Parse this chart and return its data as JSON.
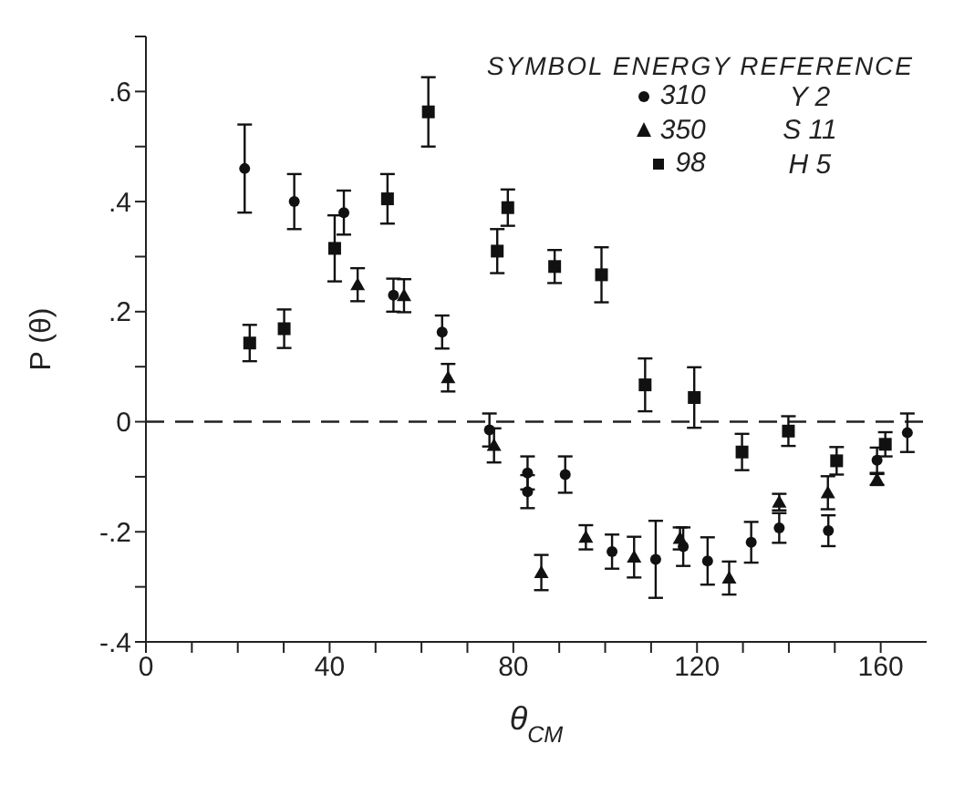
{
  "chart_data": {
    "type": "scatter",
    "xlabel": "θ$_{CM}$",
    "ylabel": "P (θ)",
    "legend_title": "SYMBOL ENERGY REFERENCE",
    "legend": "top right",
    "annotations": [
      "Y 2",
      "S 11",
      "H 5"
    ],
    "xlim": [
      0,
      170
    ],
    "ylim": [
      -0.4,
      0.7
    ],
    "xticks": [
      0,
      {
        "value": 10,
        "label": null
      },
      {
        "value": 20,
        "label": null
      },
      {
        "value": 30,
        "label": null
      },
      40,
      {
        "value": 50,
        "label": null
      },
      {
        "value": 60,
        "label": null
      },
      {
        "value": 70,
        "label": null
      },
      80,
      {
        "value": 90,
        "label": null
      },
      {
        "value": 100,
        "label": null
      },
      {
        "value": 110,
        "label": null
      },
      120,
      {
        "value": 130,
        "label": null
      },
      {
        "value": 140,
        "label": null
      },
      {
        "value": 150,
        "label": null
      },
      160
    ],
    "yticks": [
      {
        "value": -0.4,
        "label": "-.4"
      },
      {
        "value": -0.3,
        "label": null
      },
      {
        "value": -0.2,
        "label": "-.2"
      },
      {
        "value": -0.1,
        "label": null
      },
      0,
      {
        "value": 0.1,
        "label": null
      },
      {
        "value": 0.2,
        "label": ".2"
      },
      {
        "value": 0.3,
        "label": null
      },
      {
        "value": 0.4,
        "label": ".4"
      },
      {
        "value": 0.5,
        "label": null
      },
      {
        "value": 0.6,
        "label": ".6"
      },
      {
        "value": 0.7,
        "label": null
      }
    ],
    "ref_lines": [
      {
        "axis": "y",
        "value": 0,
        "line_style": "dashed",
        "color": "#222222"
      }
    ],
    "series": [
      {
        "name": "310",
        "color": "#111111",
        "marker": "circle",
        "x": [
          21.5,
          32.3,
          43.1,
          53.9,
          64.5,
          74.8,
          83.1,
          83.1,
          91.3,
          101.5,
          111,
          117,
          122.3,
          131.8,
          137.9,
          148.6,
          159.2,
          165.8
        ],
        "values": [
          0.46,
          0.4,
          0.38,
          0.23,
          0.163,
          -0.015,
          -0.093,
          -0.127,
          -0.096,
          -0.236,
          -0.25,
          -0.227,
          -0.253,
          -0.219,
          -0.193,
          -0.198,
          -0.07,
          -0.02
        ],
        "errors": [
          0.08,
          0.05,
          0.04,
          0.03,
          0.03,
          0.03,
          0.03,
          0.03,
          0.033,
          0.031,
          0.07,
          0.035,
          0.043,
          0.037,
          0.027,
          0.028,
          0.023,
          0.035
        ]
      },
      {
        "name": "350",
        "color": "#111111",
        "marker": "triangle",
        "x": [
          46.1,
          56.2,
          65.8,
          75.8,
          86.1,
          95.8,
          106.3,
          116.3,
          127,
          137.9,
          148.5,
          159.2
        ],
        "values": [
          0.249,
          0.229,
          0.08,
          -0.043,
          -0.274,
          -0.21,
          -0.246,
          -0.212,
          -0.284,
          -0.146,
          -0.129,
          -0.105
        ],
        "errors": [
          0.03,
          0.03,
          0.025,
          0.031,
          0.032,
          0.022,
          0.037,
          0.02,
          0.03,
          0.015,
          0.03,
          0.01
        ]
      },
      {
        "name": "98",
        "color": "#111111",
        "marker": "square",
        "x": [
          22.6,
          30.1,
          41.1,
          52.6,
          61.5,
          76.5,
          78.8,
          89,
          99.2,
          108.7,
          119.4,
          129.8,
          139.9,
          150.4,
          161
        ],
        "values": [
          0.143,
          0.169,
          0.315,
          0.405,
          0.563,
          0.31,
          0.389,
          0.282,
          0.267,
          0.067,
          0.044,
          -0.055,
          -0.017,
          -0.071,
          -0.041
        ],
        "errors": [
          0.033,
          0.035,
          0.06,
          0.045,
          0.063,
          0.04,
          0.033,
          0.03,
          0.05,
          0.048,
          0.055,
          0.033,
          0.027,
          0.025,
          0.022
        ]
      }
    ]
  }
}
